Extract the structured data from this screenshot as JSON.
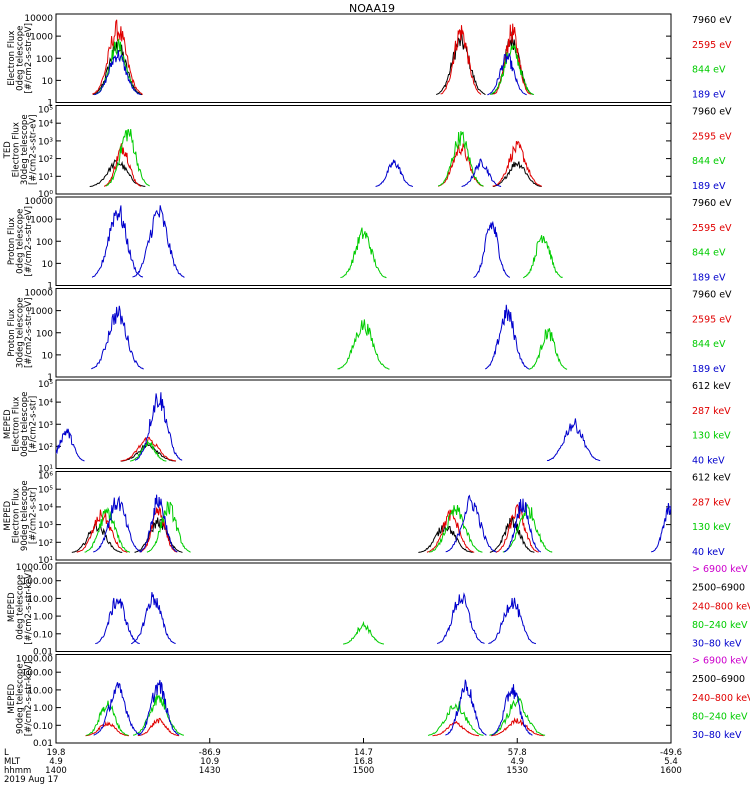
{
  "title": "NOAA19",
  "panels": [
    {
      "ylabel": [
        "Electron Flux",
        "0deg telescope",
        "[#/cm2-s-str-eV]"
      ],
      "yscale": "log",
      "ylim": [
        1,
        10000
      ],
      "ticks": [
        "10000",
        "1000",
        "100",
        "10",
        "1"
      ],
      "legend": [
        {
          "label": "7960 eV",
          "color": "#000000"
        },
        {
          "label": "2595 eV",
          "color": "#e00000"
        },
        {
          "label": "844 eV",
          "color": "#00cc00"
        },
        {
          "label": "189 eV",
          "color": "#0000cc"
        }
      ]
    },
    {
      "ylabel": [
        "TED",
        "Electron Flux",
        "30deg telescope",
        "[#/cm2-s-str-eV]"
      ],
      "yscale": "log",
      "ylim": [
        1,
        100000
      ],
      "ticks": [
        "10⁵",
        "10⁴",
        "10³",
        "10²",
        "10¹",
        "10⁰"
      ],
      "legend": [
        {
          "label": "7960 eV",
          "color": "#000000"
        },
        {
          "label": "2595 eV",
          "color": "#e00000"
        },
        {
          "label": "844 eV",
          "color": "#00cc00"
        },
        {
          "label": "189 eV",
          "color": "#0000cc"
        }
      ]
    },
    {
      "ylabel": [
        "Proton Flux",
        "0deg telescope",
        "[#/cm2-s-str-eV]"
      ],
      "yscale": "log",
      "ylim": [
        1,
        10000
      ],
      "ticks": [
        "10000",
        "1000",
        "100",
        "10",
        "1"
      ],
      "legend": [
        {
          "label": "7960 eV",
          "color": "#000000"
        },
        {
          "label": "2595 eV",
          "color": "#e00000"
        },
        {
          "label": "844 eV",
          "color": "#00cc00"
        },
        {
          "label": "189 eV",
          "color": "#0000cc"
        }
      ]
    },
    {
      "ylabel": [
        "Proton Flux",
        "30deg telescope",
        "[#/cm2-s-str-eV]"
      ],
      "yscale": "log",
      "ylim": [
        1,
        10000
      ],
      "ticks": [
        "10000",
        "1000",
        "100",
        "10",
        "1"
      ],
      "legend": [
        {
          "label": "7960 eV",
          "color": "#000000"
        },
        {
          "label": "2595 eV",
          "color": "#e00000"
        },
        {
          "label": "844 eV",
          "color": "#00cc00"
        },
        {
          "label": "189 eV",
          "color": "#0000cc"
        }
      ]
    },
    {
      "ylabel": [
        "MEPED",
        "Electron Flux",
        "0deg telescope",
        "[#/cm2-s-str]"
      ],
      "yscale": "log",
      "ylim": [
        10,
        100000
      ],
      "ticks": [
        "10⁵",
        "10⁴",
        "10³",
        "10²",
        "10¹"
      ],
      "legend": [
        {
          "label": "612 keV",
          "color": "#000000"
        },
        {
          "label": "287 keV",
          "color": "#e00000"
        },
        {
          "label": "130 keV",
          "color": "#00cc00"
        },
        {
          "label": "40 keV",
          "color": "#0000cc"
        }
      ]
    },
    {
      "ylabel": [
        "MEPED",
        "Electron Flux",
        "90deg telescope",
        "[#/cm2-s-str]"
      ],
      "yscale": "log",
      "ylim": [
        10,
        1000000
      ],
      "ticks": [
        "10⁶",
        "10⁵",
        "10⁴",
        "10³",
        "10²",
        "10¹"
      ],
      "legend": [
        {
          "label": "612 keV",
          "color": "#000000"
        },
        {
          "label": "287 keV",
          "color": "#e00000"
        },
        {
          "label": "130 keV",
          "color": "#00cc00"
        },
        {
          "label": "40 keV",
          "color": "#0000cc"
        }
      ]
    },
    {
      "ylabel": [
        "MEPED",
        "0deg telescope",
        "[#/cm2-s-str-keV]"
      ],
      "yscale": "log",
      "ylim": [
        0.01,
        10000
      ],
      "ticks": [
        "1000.00",
        "100.00",
        "10.00",
        "1.00",
        "0.10",
        "0.01"
      ],
      "legend": [
        {
          "label": "> 6900 keV",
          "color": "#cc00cc"
        },
        {
          "label": "2500–6900",
          "color": "#000000"
        },
        {
          "label": "240–800 keV",
          "color": "#e00000"
        },
        {
          "label": "80–240 keV",
          "color": "#00cc00"
        },
        {
          "label": "30–80 keV",
          "color": "#0000cc"
        }
      ]
    },
    {
      "ylabel": [
        "MEPED",
        "90deg telescope",
        "[#/cm2-s-str-keV]"
      ],
      "yscale": "log",
      "ylim": [
        0.01,
        10000
      ],
      "ticks": [
        "1000.00",
        "100.00",
        "10.00",
        "1.00",
        "0.10",
        "0.01"
      ],
      "legend": [
        {
          "label": "> 6900 keV",
          "color": "#cc00cc"
        },
        {
          "label": "2500–6900",
          "color": "#000000"
        },
        {
          "label": "240–800 keV",
          "color": "#e00000"
        },
        {
          "label": "80–240 keV",
          "color": "#00cc00"
        },
        {
          "label": "30–80 keV",
          "color": "#0000cc"
        }
      ]
    }
  ],
  "x_axis": {
    "row_labels": [
      "L",
      "MLT",
      "hhmm"
    ],
    "date": "2019 Aug 17",
    "ticks": [
      {
        "lon": "19.8",
        "mlt": "4.9",
        "time": "1400"
      },
      {
        "lon": "-86.9",
        "mlt": "10.9",
        "time": "1430"
      },
      {
        "lon": "14.7",
        "mlt": "16.8",
        "time": "1500"
      },
      {
        "lon": "57.8",
        "mlt": "4.9",
        "time": "1530"
      },
      {
        "lon": "-49.6",
        "mlt": "5.4",
        "time": "1600"
      }
    ]
  },
  "chart_data": {
    "type": "line",
    "title": "NOAA19",
    "x_unit": "hhmm",
    "x_range": [
      "1400",
      "1600"
    ],
    "panels": [
      {
        "name": "TED Electron Flux 0deg",
        "series": [
          {
            "name": "7960 eV",
            "peaks": [
              {
                "x": "1412",
                "y": 800
              },
              {
                "x": "1519",
                "y": 1500
              },
              {
                "x": "1529",
                "y": 2000
              }
            ]
          },
          {
            "name": "2595 eV",
            "peaks": [
              {
                "x": "1412",
                "y": 6000
              },
              {
                "x": "1519",
                "y": 5000
              },
              {
                "x": "1529",
                "y": 4500
              }
            ]
          },
          {
            "name": "844 eV",
            "peaks": [
              {
                "x": "1412",
                "y": 900
              },
              {
                "x": "1529",
                "y": 600
              }
            ]
          },
          {
            "name": "189 eV",
            "peaks": [
              {
                "x": "1412",
                "y": 300
              },
              {
                "x": "1528",
                "y": 200
              }
            ]
          }
        ]
      },
      {
        "name": "TED Electron Flux 30deg",
        "series": [
          {
            "name": "7960 eV",
            "peaks": [
              {
                "x": "1412",
                "y": 100
              },
              {
                "x": "1530",
                "y": 100
              }
            ]
          },
          {
            "name": "2595 eV",
            "peaks": [
              {
                "x": "1413",
                "y": 1000
              },
              {
                "x": "1519",
                "y": 1000
              },
              {
                "x": "1530",
                "y": 1000
              }
            ]
          },
          {
            "name": "844 eV",
            "peaks": [
              {
                "x": "1414",
                "y": 10000
              },
              {
                "x": "1519",
                "y": 5000
              }
            ]
          },
          {
            "name": "189 eV",
            "peaks": [
              {
                "x": "1506",
                "y": 100
              },
              {
                "x": "1523",
                "y": 100
              }
            ]
          }
        ]
      },
      {
        "name": "TED Proton Flux 0deg",
        "series": [
          {
            "name": "844 eV",
            "peaks": [
              {
                "x": "1500",
                "y": 500
              },
              {
                "x": "1535",
                "y": 400
              }
            ]
          },
          {
            "name": "189 eV",
            "peaks": [
              {
                "x": "1412",
                "y": 8000
              },
              {
                "x": "1420",
                "y": 6000
              },
              {
                "x": "1525",
                "y": 1500
              }
            ]
          }
        ]
      },
      {
        "name": "TED Proton Flux 30deg",
        "series": [
          {
            "name": "844 eV",
            "peaks": [
              {
                "x": "1500",
                "y": 500
              },
              {
                "x": "1536",
                "y": 200
              }
            ]
          },
          {
            "name": "189 eV",
            "peaks": [
              {
                "x": "1412",
                "y": 2000
              },
              {
                "x": "1528",
                "y": 2000
              }
            ]
          }
        ]
      },
      {
        "name": "MEPED Electron Flux 0deg",
        "series": [
          {
            "name": "612 keV",
            "peaks": [
              {
                "x": "1418",
                "y": 150
              }
            ]
          },
          {
            "name": "287 keV",
            "peaks": [
              {
                "x": "1418",
                "y": 300
              }
            ]
          },
          {
            "name": "130 keV",
            "peaks": [
              {
                "x": "1418",
                "y": 200
              }
            ]
          },
          {
            "name": "40 keV",
            "peaks": [
              {
                "x": "1402",
                "y": 800
              },
              {
                "x": "1420",
                "y": 50000
              },
              {
                "x": "1541",
                "y": 2000
              }
            ]
          }
        ]
      },
      {
        "name": "MEPED Electron Flux 90deg",
        "series": [
          {
            "name": "612 keV",
            "peaks": [
              {
                "x": "1408",
                "y": 1500
              },
              {
                "x": "1420",
                "y": 3000
              },
              {
                "x": "1516",
                "y": 1500
              },
              {
                "x": "1529",
                "y": 3000
              }
            ]
          },
          {
            "name": "287 keV",
            "peaks": [
              {
                "x": "1409",
                "y": 8000
              },
              {
                "x": "1420",
                "y": 12000
              },
              {
                "x": "1517",
                "y": 8000
              },
              {
                "x": "1530",
                "y": 15000
              }
            ]
          },
          {
            "name": "130 keV",
            "peaks": [
              {
                "x": "1410",
                "y": 12000
              },
              {
                "x": "1422",
                "y": 25000
              },
              {
                "x": "1518",
                "y": 15000
              },
              {
                "x": "1532",
                "y": 20000
              }
            ]
          },
          {
            "name": "40 keV",
            "peaks": [
              {
                "x": "1412",
                "y": 60000
              },
              {
                "x": "1420",
                "y": 80000
              },
              {
                "x": "1521",
                "y": 60000
              },
              {
                "x": "1531",
                "y": 50000
              },
              {
                "x": "1600",
                "y": 30000
              }
            ]
          }
        ]
      },
      {
        "name": "MEPED Proton 0deg",
        "series": [
          {
            "name": "80–240 keV",
            "peaks": [
              {
                "x": "1500",
                "y": 1
              }
            ]
          },
          {
            "name": "30–80 keV",
            "peaks": [
              {
                "x": "1412",
                "y": 100
              },
              {
                "x": "1419",
                "y": 150
              },
              {
                "x": "1519",
                "y": 150
              },
              {
                "x": "1529",
                "y": 80
              }
            ]
          }
        ]
      },
      {
        "name": "MEPED Proton 90deg",
        "series": [
          {
            "name": "240–800 keV",
            "peaks": [
              {
                "x": "1410",
                "y": 0.3
              },
              {
                "x": "1420",
                "y": 0.5
              },
              {
                "x": "1518",
                "y": 0.3
              },
              {
                "x": "1530",
                "y": 0.5
              }
            ]
          },
          {
            "name": "80–240 keV",
            "peaks": [
              {
                "x": "1410",
                "y": 10
              },
              {
                "x": "1420",
                "y": 30
              },
              {
                "x": "1518",
                "y": 10
              },
              {
                "x": "1530",
                "y": 15
              }
            ]
          },
          {
            "name": "30–80 keV",
            "peaks": [
              {
                "x": "1412",
                "y": 150
              },
              {
                "x": "1420",
                "y": 300
              },
              {
                "x": "1520",
                "y": 300
              },
              {
                "x": "1529",
                "y": 150
              }
            ]
          }
        ]
      }
    ]
  }
}
